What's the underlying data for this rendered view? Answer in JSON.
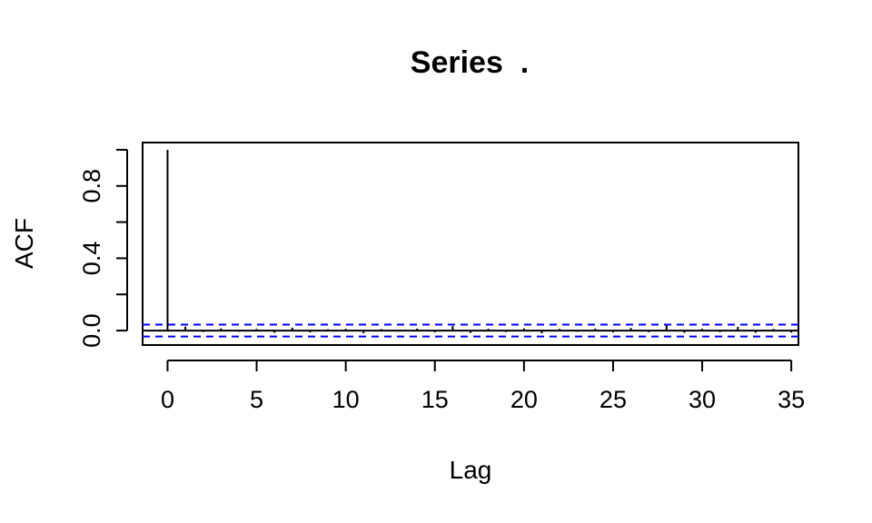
{
  "chart_data": {
    "type": "bar",
    "title": "Series  .",
    "xlabel": "Lag",
    "ylabel": "ACF",
    "xlim": [
      -1.4,
      35.4
    ],
    "ylim": [
      -0.08,
      1.04
    ],
    "x_ticks": [
      0,
      5,
      10,
      15,
      20,
      25,
      30,
      35
    ],
    "x_tick_labels": [
      "0",
      "5",
      "10",
      "15",
      "20",
      "25",
      "30",
      "35"
    ],
    "y_ticks": [
      0.0,
      0.2,
      0.4,
      0.6,
      0.8,
      1.0
    ],
    "y_tick_labels": [
      "0.0",
      "",
      "0.4",
      "",
      "0.8",
      ""
    ],
    "confidence_band": 0.033,
    "confidence_color": "#0000ff",
    "bar_color": "#000000",
    "grid": false,
    "series": [
      {
        "lags": [
          0,
          1,
          2,
          3,
          4,
          5,
          6,
          7,
          8,
          9,
          10,
          11,
          12,
          13,
          14,
          15,
          16,
          17,
          18,
          19,
          20,
          21,
          22,
          23,
          24,
          25,
          26,
          27,
          28,
          29,
          30,
          31,
          32,
          33,
          34,
          35
        ],
        "values": [
          1.0,
          0.022,
          -0.008,
          0.012,
          -0.006,
          0.009,
          -0.012,
          0.016,
          -0.01,
          0.007,
          0.01,
          -0.014,
          0.008,
          -0.005,
          0.011,
          -0.009,
          0.025,
          -0.013,
          0.01,
          -0.008,
          0.012,
          -0.015,
          0.009,
          -0.006,
          0.011,
          -0.01,
          0.014,
          -0.009,
          0.03,
          -0.012,
          0.01,
          -0.008,
          0.02,
          -0.012,
          0.009,
          -0.011
        ]
      }
    ]
  }
}
